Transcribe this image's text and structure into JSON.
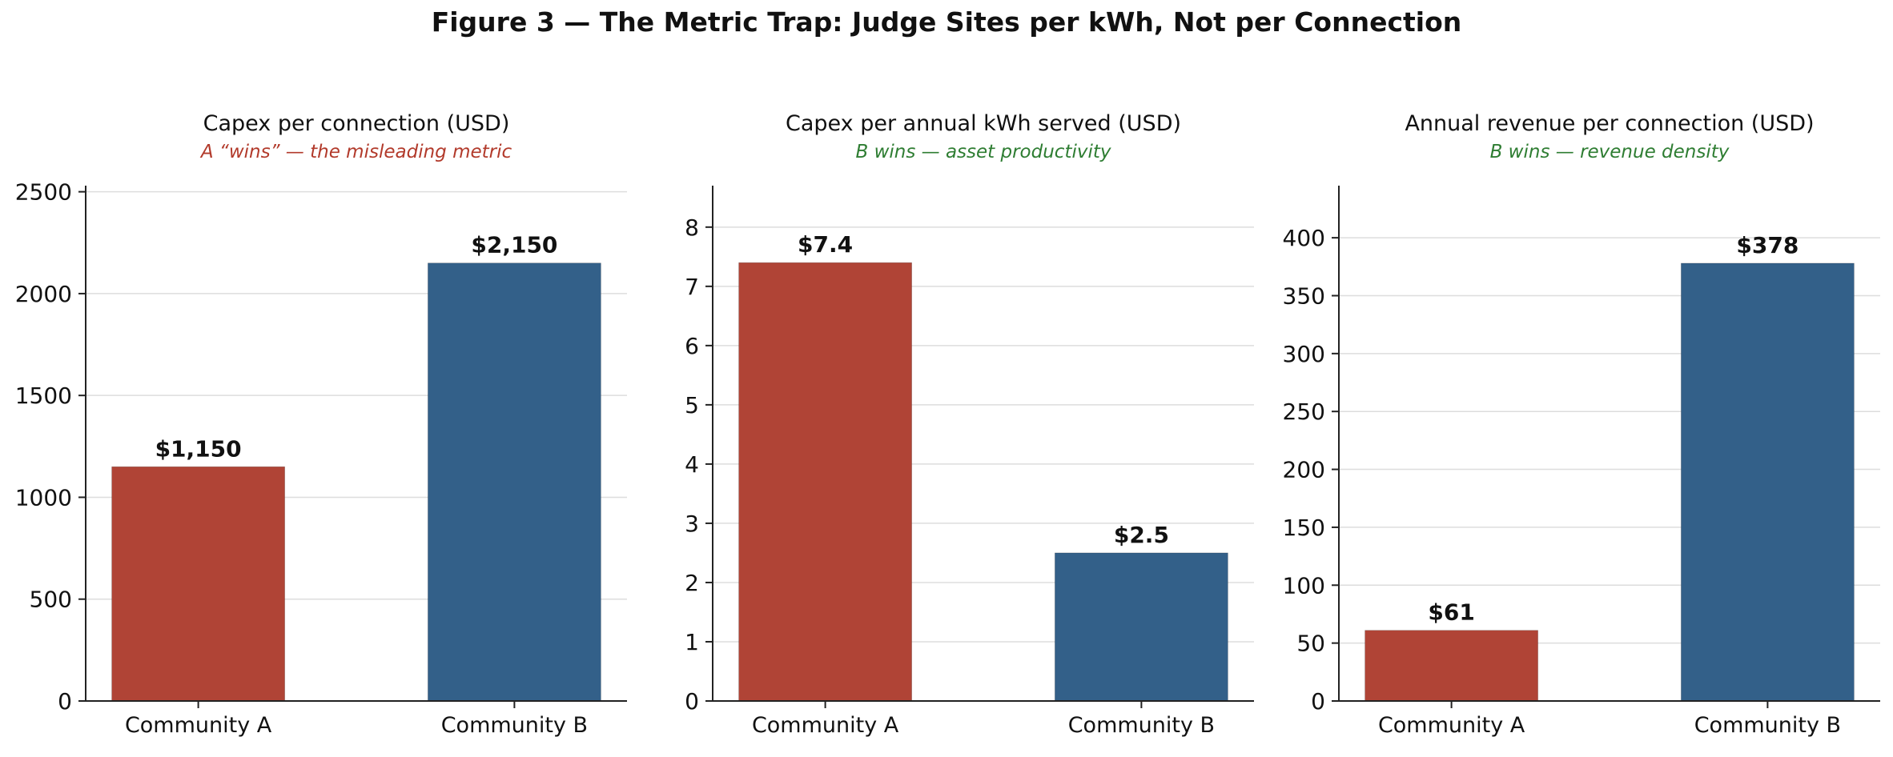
{
  "figure": {
    "title": "Figure 3 — The Metric Trap: Judge Sites per kWh, Not per Connection"
  },
  "colors": {
    "community_a": "#b04436",
    "community_b": "#336089",
    "misleading_note": "#b23a2b",
    "winner_note": "#2e7d32"
  },
  "chart_data": [
    {
      "type": "bar",
      "title": "Capex per connection (USD)",
      "subtitle": "A “wins” — the misleading metric",
      "subtitle_color": "#b23a2b",
      "categories": [
        "Community A",
        "Community B"
      ],
      "values": [
        1150,
        2150
      ],
      "data_labels": [
        "$1,150",
        "$2,150"
      ],
      "yticks": [
        0,
        500,
        1000,
        1500,
        2000,
        2500
      ],
      "ylim": [
        0,
        2530
      ],
      "grid": true,
      "xlabel": "",
      "ylabel": ""
    },
    {
      "type": "bar",
      "title": "Capex per annual kWh served (USD)",
      "subtitle": "B wins — asset productivity",
      "subtitle_color": "#2e7d32",
      "categories": [
        "Community A",
        "Community B"
      ],
      "values": [
        7.4,
        2.5
      ],
      "data_labels": [
        "$7.4",
        "$2.5"
      ],
      "yticks": [
        0,
        1,
        2,
        3,
        4,
        5,
        6,
        7,
        8
      ],
      "ylim": [
        0,
        8.7
      ],
      "grid": true,
      "xlabel": "",
      "ylabel": ""
    },
    {
      "type": "bar",
      "title": "Annual revenue per connection (USD)",
      "subtitle": "B wins — revenue density",
      "subtitle_color": "#2e7d32",
      "categories": [
        "Community A",
        "Community B"
      ],
      "values": [
        61,
        378
      ],
      "data_labels": [
        "$61",
        "$378"
      ],
      "yticks": [
        0,
        50,
        100,
        150,
        200,
        250,
        300,
        350,
        400
      ],
      "ylim": [
        0,
        445
      ],
      "grid": true,
      "xlabel": "",
      "ylabel": ""
    }
  ]
}
